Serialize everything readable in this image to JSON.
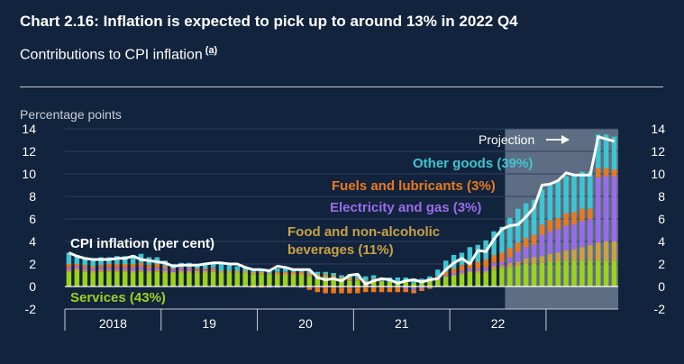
{
  "title": "Chart 2.16: Inflation is expected to pick up to around 13% in 2022 Q4",
  "subtitle": "Contributions to CPI inflation",
  "footnote_marker": "(a)",
  "chart_data": {
    "type": "bar",
    "ylabel": "Percentage points",
    "ylim": [
      -2,
      14
    ],
    "yticks": [
      -2,
      0,
      2,
      4,
      6,
      8,
      10,
      12,
      14
    ],
    "x_labels": [
      "2018",
      "19",
      "20",
      "21",
      "22"
    ],
    "projection_label": "Projection",
    "projection_start_index": 55,
    "labels": {
      "cpi": "CPI inflation (per cent)",
      "services": "Services (43%)",
      "food": "Food and non-alcoholic beverages (11%)",
      "food_line1": "Food and non-alcoholic",
      "food_line2": "beverages (11%)",
      "electricity": "Electricity and gas (3%)",
      "fuels": "Fuels and lubricants (3%)",
      "other": "Other goods (39%)"
    },
    "colors": {
      "services": "#9bd21d",
      "food": "#c8a243",
      "electricity": "#9a6de8",
      "fuels": "#e87a1e",
      "other": "#3fc5d0",
      "cpi": "#ffffff",
      "projection_shade": "#5d6d83"
    },
    "series": [
      {
        "name": "Services (43%)",
        "key": "services",
        "values": [
          1.3,
          1.4,
          1.3,
          1.2,
          1.3,
          1.3,
          1.3,
          1.3,
          1.2,
          1.3,
          1.2,
          1.3,
          1.2,
          1.2,
          1.2,
          1.2,
          1.2,
          1.2,
          1.3,
          1.2,
          1.2,
          1.2,
          1.2,
          1.1,
          1.1,
          1.1,
          1.0,
          1.0,
          1.0,
          1.0,
          0.9,
          0.8,
          0.8,
          0.7,
          0.6,
          0.5,
          0.5,
          0.3,
          0.5,
          0.4,
          0.4,
          0.4,
          0.4,
          0.3,
          0.3,
          0.5,
          0.6,
          0.9,
          1.0,
          1.1,
          1.3,
          1.2,
          1.2,
          1.5,
          1.6,
          1.7,
          1.8,
          2.0,
          2.0,
          2.1,
          2.2,
          2.2,
          2.3,
          2.3,
          2.3,
          2.3,
          2.3,
          2.3,
          2.3
        ]
      },
      {
        "name": "Food and non-alcoholic beverages (11%)",
        "key": "food",
        "values": [
          0.2,
          0.2,
          0.2,
          0.2,
          0.2,
          0.2,
          0.2,
          0.2,
          0.2,
          0.2,
          0.2,
          0.2,
          0.2,
          0.1,
          0.2,
          0.2,
          0.2,
          0.2,
          0.2,
          0.2,
          0.2,
          0.2,
          0.2,
          0.2,
          0.2,
          0.1,
          0.2,
          0.2,
          0.2,
          0.2,
          0.3,
          0.3,
          0.3,
          0.3,
          0.2,
          0.3,
          0.2,
          0.2,
          0.2,
          0.1,
          0.0,
          0.0,
          0.0,
          -0.1,
          0.0,
          0.0,
          0.0,
          0.0,
          0.0,
          0.1,
          0.1,
          0.2,
          0.2,
          0.3,
          0.3,
          0.4,
          0.4,
          0.5,
          0.6,
          0.6,
          0.7,
          0.8,
          0.9,
          1.0,
          1.2,
          1.4,
          1.6,
          1.7,
          1.7
        ]
      },
      {
        "name": "Electricity and gas (3%)",
        "key": "electricity",
        "values": [
          0.2,
          0.2,
          0.2,
          0.2,
          0.2,
          0.2,
          0.2,
          0.2,
          0.3,
          0.3,
          0.2,
          0.2,
          0.2,
          0.2,
          0.2,
          0.2,
          0.1,
          0.1,
          0.1,
          0.0,
          0.0,
          0.0,
          0.0,
          0.0,
          0.0,
          -0.1,
          -0.1,
          0.0,
          0.0,
          -0.1,
          -0.1,
          -0.1,
          -0.1,
          -0.1,
          -0.1,
          -0.1,
          -0.1,
          -0.1,
          -0.1,
          -0.1,
          -0.1,
          -0.1,
          -0.2,
          -0.2,
          -0.2,
          -0.1,
          0.1,
          0.1,
          0.2,
          0.2,
          0.2,
          0.2,
          0.3,
          0.3,
          0.3,
          0.5,
          0.9,
          1.0,
          1.1,
          1.9,
          2.0,
          2.1,
          2.2,
          2.2,
          2.3,
          2.3,
          5.8,
          5.8,
          5.8
        ]
      },
      {
        "name": "Fuels and lubricants (3%)",
        "key": "fuels",
        "values": [
          0.3,
          0.2,
          0.2,
          0.2,
          0.2,
          0.3,
          0.3,
          0.3,
          0.3,
          0.3,
          0.3,
          0.3,
          0.2,
          0.1,
          0.1,
          0.1,
          0.1,
          0.1,
          0.1,
          0.0,
          0.0,
          0.0,
          0.0,
          -0.1,
          -0.1,
          0.0,
          0.1,
          0.1,
          0.1,
          0.1,
          -0.2,
          -0.4,
          -0.5,
          -0.5,
          -0.5,
          -0.5,
          -0.5,
          -0.4,
          -0.4,
          -0.4,
          -0.4,
          -0.4,
          -0.3,
          -0.3,
          -0.2,
          -0.1,
          0.2,
          0.3,
          0.4,
          0.5,
          0.6,
          0.6,
          0.7,
          0.7,
          0.8,
          0.8,
          0.8,
          0.8,
          0.9,
          0.9,
          1.0,
          1.0,
          1.1,
          1.1,
          1.1,
          0.9,
          0.8,
          0.7,
          0.6
        ]
      },
      {
        "name": "Other goods (39%)",
        "key": "other",
        "values": [
          1.0,
          0.8,
          0.7,
          0.7,
          0.7,
          0.6,
          0.7,
          0.7,
          0.8,
          0.8,
          0.7,
          0.6,
          0.5,
          0.4,
          0.4,
          0.4,
          0.3,
          0.3,
          0.4,
          0.6,
          0.5,
          0.4,
          0.4,
          0.3,
          0.3,
          0.3,
          0.3,
          0.3,
          0.3,
          0.3,
          0.3,
          0.2,
          0.2,
          0.2,
          0.2,
          0.3,
          0.4,
          0.4,
          0.3,
          0.3,
          0.4,
          0.4,
          0.4,
          0.4,
          0.4,
          0.4,
          0.6,
          1.0,
          1.2,
          1.1,
          1.3,
          1.5,
          1.7,
          2.1,
          2.3,
          2.7,
          3.0,
          3.1,
          3.1,
          3.1,
          3.1,
          3.2,
          3.3,
          3.4,
          3.3,
          3.3,
          3.0,
          3.0,
          2.9
        ]
      }
    ],
    "cpi_values": [
      3.0,
      2.7,
      2.5,
      2.4,
      2.4,
      2.4,
      2.5,
      2.5,
      2.7,
      2.4,
      2.3,
      2.2,
      2.1,
      1.8,
      1.9,
      1.9,
      1.9,
      2.0,
      2.1,
      2.1,
      2.0,
      2.0,
      1.7,
      1.5,
      1.5,
      1.4,
      1.8,
      1.7,
      1.5,
      1.5,
      1.5,
      0.8,
      0.6,
      0.7,
      0.5,
      1.0,
      1.1,
      0.2,
      0.5,
      0.7,
      0.6,
      0.3,
      0.5,
      0.6,
      0.4,
      0.6,
      0.7,
      1.5,
      2.1,
      2.5,
      2.0,
      3.2,
      3.1,
      4.2,
      5.1,
      5.4,
      5.5,
      6.2,
      7.0,
      9.0,
      9.1,
      9.4,
      10.1,
      9.9,
      9.9,
      9.9,
      13.3,
      13.1,
      12.9
    ]
  }
}
